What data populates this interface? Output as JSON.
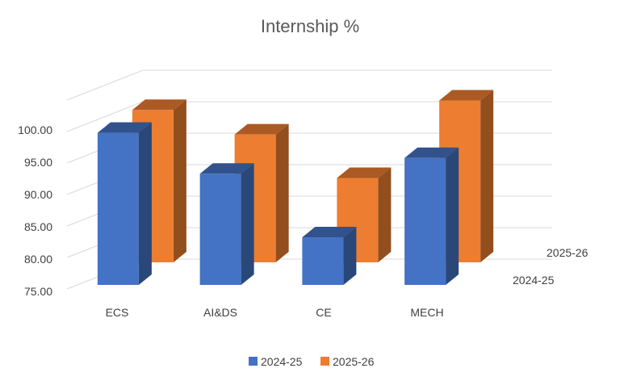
{
  "chart_data": {
    "type": "bar",
    "title": "Internship %",
    "categories": [
      "ECS",
      "AI&DS",
      "CE",
      "MECH"
    ],
    "series": [
      {
        "name": "2024-25",
        "values": [
          99.8,
          93.3,
          83.2,
          95.8
        ],
        "color": "#4472C4"
      },
      {
        "name": "2025-26",
        "values": [
          99.2,
          95.3,
          88.4,
          100.7
        ],
        "color": "#ED7D31"
      }
    ],
    "yticks": [
      "100.00",
      "95.00",
      "90.00",
      "85.00",
      "80.00",
      "75.00"
    ],
    "ylim": [
      75,
      100
    ],
    "depth_labels": [
      "2025-26",
      "2024-25"
    ],
    "legend": [
      "2024-25",
      "2025-26"
    ],
    "legend_position": "bottom",
    "grid": true,
    "chart_style": "3d-column"
  }
}
